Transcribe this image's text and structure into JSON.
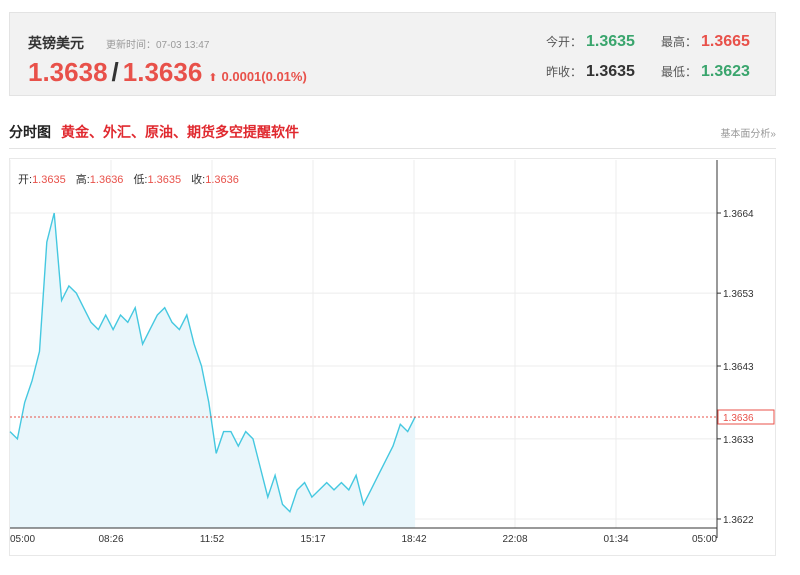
{
  "quote": {
    "name": "英镑美元",
    "updated": "更新时间：07-03 13:47",
    "bid": "1.3638",
    "slash": "/",
    "ask": "1.3636",
    "arrow": "⬆",
    "change": "0.0001(0.01%)",
    "open_label": "今开：",
    "open": "1.3635",
    "high_label": "最高：",
    "high": "1.3665",
    "prev_label": "昨收：",
    "prev": "1.3635",
    "low_label": "最低：",
    "low": "1.3623"
  },
  "section": {
    "title": "分时图",
    "link": "黄金、外汇、原油、期货多空提醒软件",
    "right_link": "基本面分析»"
  },
  "ohlc": {
    "open_label": "开:",
    "open": "1.3635",
    "high_label": "高:",
    "high": "1.3636",
    "low_label": "低:",
    "low": "1.3635",
    "close_label": "收:",
    "close": "1.3636"
  },
  "colors": {
    "up": "#e8514a",
    "down": "#3aa56d",
    "line": "#45c8e0",
    "fill": "#e9f6fb",
    "grid": "#ececec"
  },
  "chart_data": {
    "type": "line",
    "x_ticks": [
      "05:00",
      "08:26",
      "11:52",
      "15:17",
      "18:42",
      "22:08",
      "01:34",
      "05:00"
    ],
    "y_ticks": [
      "1.3664",
      "1.3653",
      "1.3643",
      "1.3633",
      "1.3622"
    ],
    "ylim": [
      1.3622,
      1.3664
    ],
    "current_price": "1.3636",
    "current_value": 1.3636,
    "series": [
      {
        "x": [
          0,
          0.25,
          0.5,
          0.75,
          1.0,
          1.25,
          1.5,
          1.75,
          2.0,
          2.25,
          2.5,
          2.75,
          3.0,
          3.25,
          3.5,
          3.75,
          4.0,
          4.25,
          4.5,
          4.75,
          5.0,
          5.25,
          5.5,
          5.75,
          6.0,
          6.25,
          6.5,
          6.75,
          7.0,
          7.25,
          7.5,
          7.75,
          8.0,
          8.25,
          8.5,
          8.75,
          9.0,
          9.25,
          9.5,
          9.75,
          10.0,
          10.25,
          10.5,
          10.75,
          11.0,
          11.25,
          11.5,
          11.75,
          12.0,
          12.25,
          12.5,
          12.75,
          13.0,
          13.25,
          13.5,
          13.75
        ],
        "y": [
          1.3634,
          1.3633,
          1.3638,
          1.3641,
          1.3645,
          1.366,
          1.3664,
          1.3652,
          1.3654,
          1.3653,
          1.3651,
          1.3649,
          1.3648,
          1.365,
          1.3648,
          1.365,
          1.3649,
          1.3651,
          1.3646,
          1.3648,
          1.365,
          1.3651,
          1.3649,
          1.3648,
          1.365,
          1.3646,
          1.3643,
          1.3638,
          1.3631,
          1.3634,
          1.3634,
          1.3632,
          1.3634,
          1.3633,
          1.3629,
          1.3625,
          1.3628,
          1.3624,
          1.3623,
          1.3626,
          1.3627,
          1.3625,
          1.3626,
          1.3627,
          1.3626,
          1.3627,
          1.3626,
          1.3628,
          1.3624,
          1.3626,
          1.3628,
          1.363,
          1.3632,
          1.3635,
          1.3634,
          1.3636
        ]
      }
    ]
  }
}
